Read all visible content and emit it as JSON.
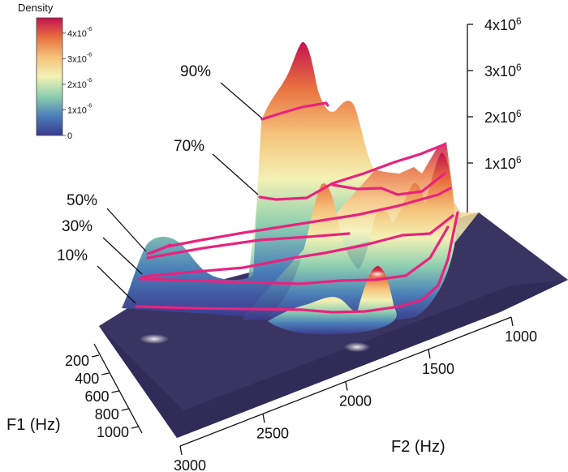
{
  "chart_data": {
    "type": "3d-surface",
    "legend": {
      "title": "Density",
      "ticks": [
        {
          "value": 0,
          "label": "0"
        },
        {
          "value": 1e-06,
          "label": "1x10",
          "exp": "-6"
        },
        {
          "value": 2e-06,
          "label": "2x10",
          "exp": "-6"
        },
        {
          "value": 3e-06,
          "label": "3x10",
          "exp": "-6"
        },
        {
          "value": 4e-06,
          "label": "4x10",
          "exp": "-6"
        }
      ],
      "range": [
        0,
        4.6e-06
      ],
      "colors": [
        "#3c3a8e",
        "#4a7fb8",
        "#8ecfb0",
        "#f3f1b4",
        "#f5c27a",
        "#e8713f",
        "#c4124f"
      ]
    },
    "z_axis": {
      "label": "",
      "range": [
        0,
        4000000
      ],
      "ticks": [
        {
          "value": 1000000,
          "label": "1x10",
          "exp": "6"
        },
        {
          "value": 2000000,
          "label": "2x10",
          "exp": "6"
        },
        {
          "value": 3000000,
          "label": "3x10",
          "exp": "6"
        },
        {
          "value": 4000000,
          "label": "4x10",
          "exp": "6"
        }
      ]
    },
    "f2_axis": {
      "label": "F2 (Hz)",
      "ticks": [
        1000,
        1500,
        2000,
        2500,
        3000
      ]
    },
    "f1_axis": {
      "label": "F1 (Hz)",
      "ticks": [
        200,
        400,
        600,
        800,
        1000
      ]
    },
    "contours": [
      {
        "label": "90%",
        "level": 0.9
      },
      {
        "label": "70%",
        "level": 0.7
      },
      {
        "label": "50%",
        "level": 0.5
      },
      {
        "label": "30%",
        "level": 0.3
      },
      {
        "label": "10%",
        "level": 0.1
      }
    ],
    "contour_color": "#e8237f"
  }
}
